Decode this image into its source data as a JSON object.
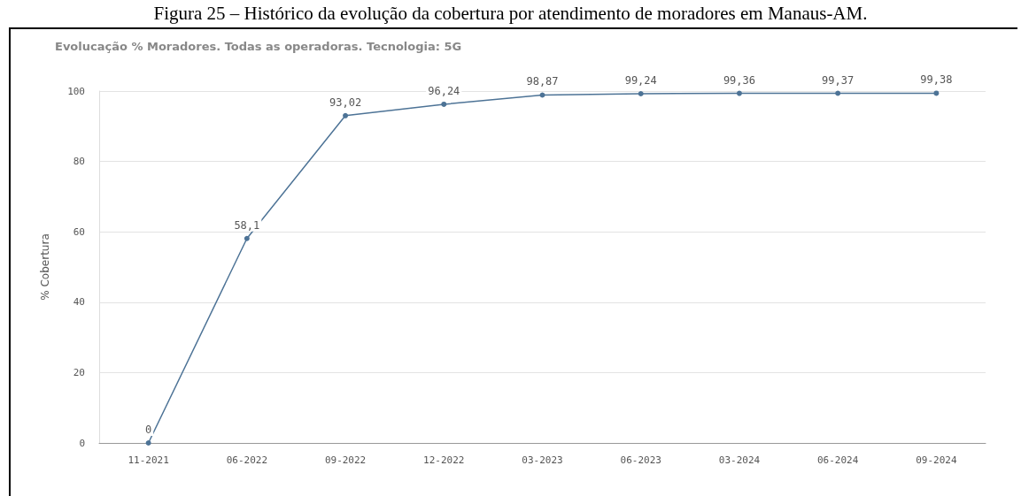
{
  "chart_data": {
    "type": "line",
    "title": "Figura 25 – Histórico da evolução da cobertura por atendimento de moradores em Manaus-AM.",
    "subtitle": "Evolucação % Moradores. Todas as operadoras. Tecnologia: 5G",
    "ylabel": "% Cobertura",
    "categories": [
      "11-2021",
      "06-2022",
      "09-2022",
      "12-2022",
      "03-2023",
      "06-2023",
      "03-2024",
      "06-2024",
      "09-2024"
    ],
    "series": [
      {
        "color": "#4d7396",
        "values": [
          0,
          58.1,
          93.02,
          96.24,
          98.87,
          99.24,
          99.36,
          99.37,
          99.38
        ],
        "value_labels": [
          "0",
          "58,1",
          "93,02",
          "96,24",
          "98,87",
          "99,24",
          "99,36",
          "99,37",
          "99,38"
        ]
      }
    ],
    "ylim": [
      0,
      100
    ],
    "yticks": [
      0,
      20,
      40,
      60,
      80,
      100
    ],
    "grid": "y",
    "marker": "circle",
    "line_style": "solid"
  }
}
